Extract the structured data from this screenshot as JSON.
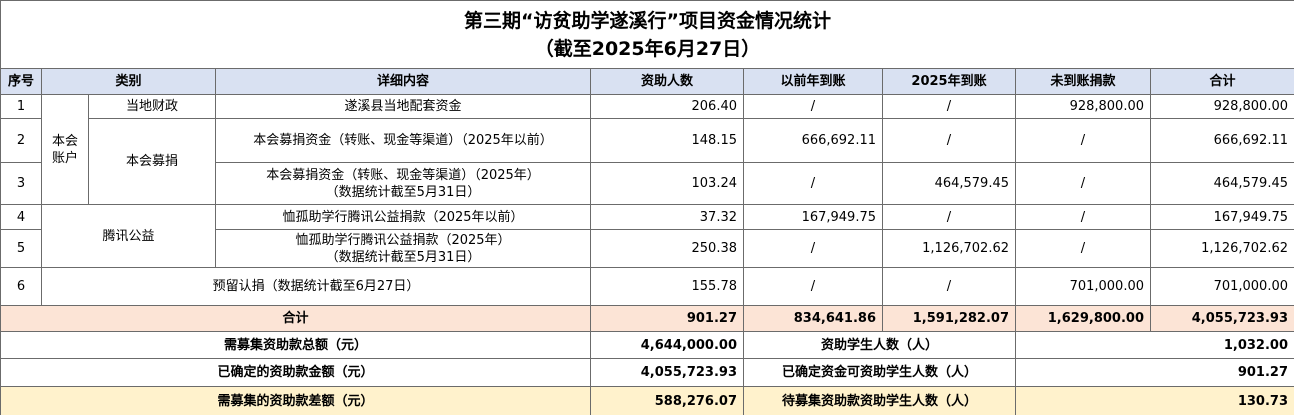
{
  "title": [
    "第三期“访贫助学遂溪行”项目资金情况统计",
    "（截至2025年6月27日）"
  ],
  "table": {
    "headers": [
      "序号",
      "类别",
      "详细内容",
      "资助人数",
      "以前年到账",
      "2025年到账",
      "未到账捐款",
      "合计"
    ],
    "categories": [
      {
        "name": "本会账户",
        "subs": [
          "当地财政",
          "本会募捐"
        ]
      },
      {
        "name": "腾讯公益"
      }
    ],
    "rows": [
      {
        "no": "1",
        "detail": [
          "遂溪县当地配套资金"
        ],
        "people": "206.40",
        "prior": "/",
        "current": "/",
        "pending": "928,800.00",
        "total": "928,800.00"
      },
      {
        "no": "2",
        "detail": [
          "本会募捐资金（转账、现金等渠道）（2025年以前）"
        ],
        "people": "148.15",
        "prior": "666,692.11",
        "current": "/",
        "pending": "/",
        "total": "666,692.11"
      },
      {
        "no": "3",
        "detail": [
          "本会募捐资金（转账、现金等渠道）（2025年）",
          "（数据统计截至5月31日）"
        ],
        "people": "103.24",
        "prior": "/",
        "current": "464,579.45",
        "pending": "/",
        "total": "464,579.45"
      },
      {
        "no": "4",
        "detail": [
          "恤孤助学行腾讯公益捐款（2025年以前）"
        ],
        "people": "37.32",
        "prior": "167,949.75",
        "current": "/",
        "pending": "/",
        "total": "167,949.75"
      },
      {
        "no": "5",
        "detail": [
          "恤孤助学行腾讯公益捐款（2025年）",
          "（数据统计截至5月31日）"
        ],
        "people": "250.38",
        "prior": "/",
        "current": "1,126,702.62",
        "pending": "/",
        "total": "1,126,702.62"
      },
      {
        "no": "6",
        "detail": [
          "预留认捐（数据统计截至6月27日）"
        ],
        "people": "155.78",
        "prior": "/",
        "current": "/",
        "pending": "701,000.00",
        "total": "701,000.00"
      }
    ],
    "total_row": {
      "label": "合计",
      "people": "901.27",
      "prior": "834,641.86",
      "current": "1,591,282.07",
      "pending": "1,629,800.00",
      "total": "4,055,723.93"
    },
    "summary": [
      {
        "label": "需募集资助款总额（元）",
        "value": "4,644,000.00",
        "label2": "资助学生人数（人）",
        "value2": "1,032.00"
      },
      {
        "label": "已确定的资助款金额（元）",
        "value": "4,055,723.93",
        "label2": "已确定资金可资助学生人数（人）",
        "value2": "901.27"
      },
      {
        "label": "需募集的资助款差额（元）",
        "value": "588,276.07",
        "label2": "待募集资助款资助学生人数（人）",
        "value2": "130.73"
      }
    ]
  }
}
